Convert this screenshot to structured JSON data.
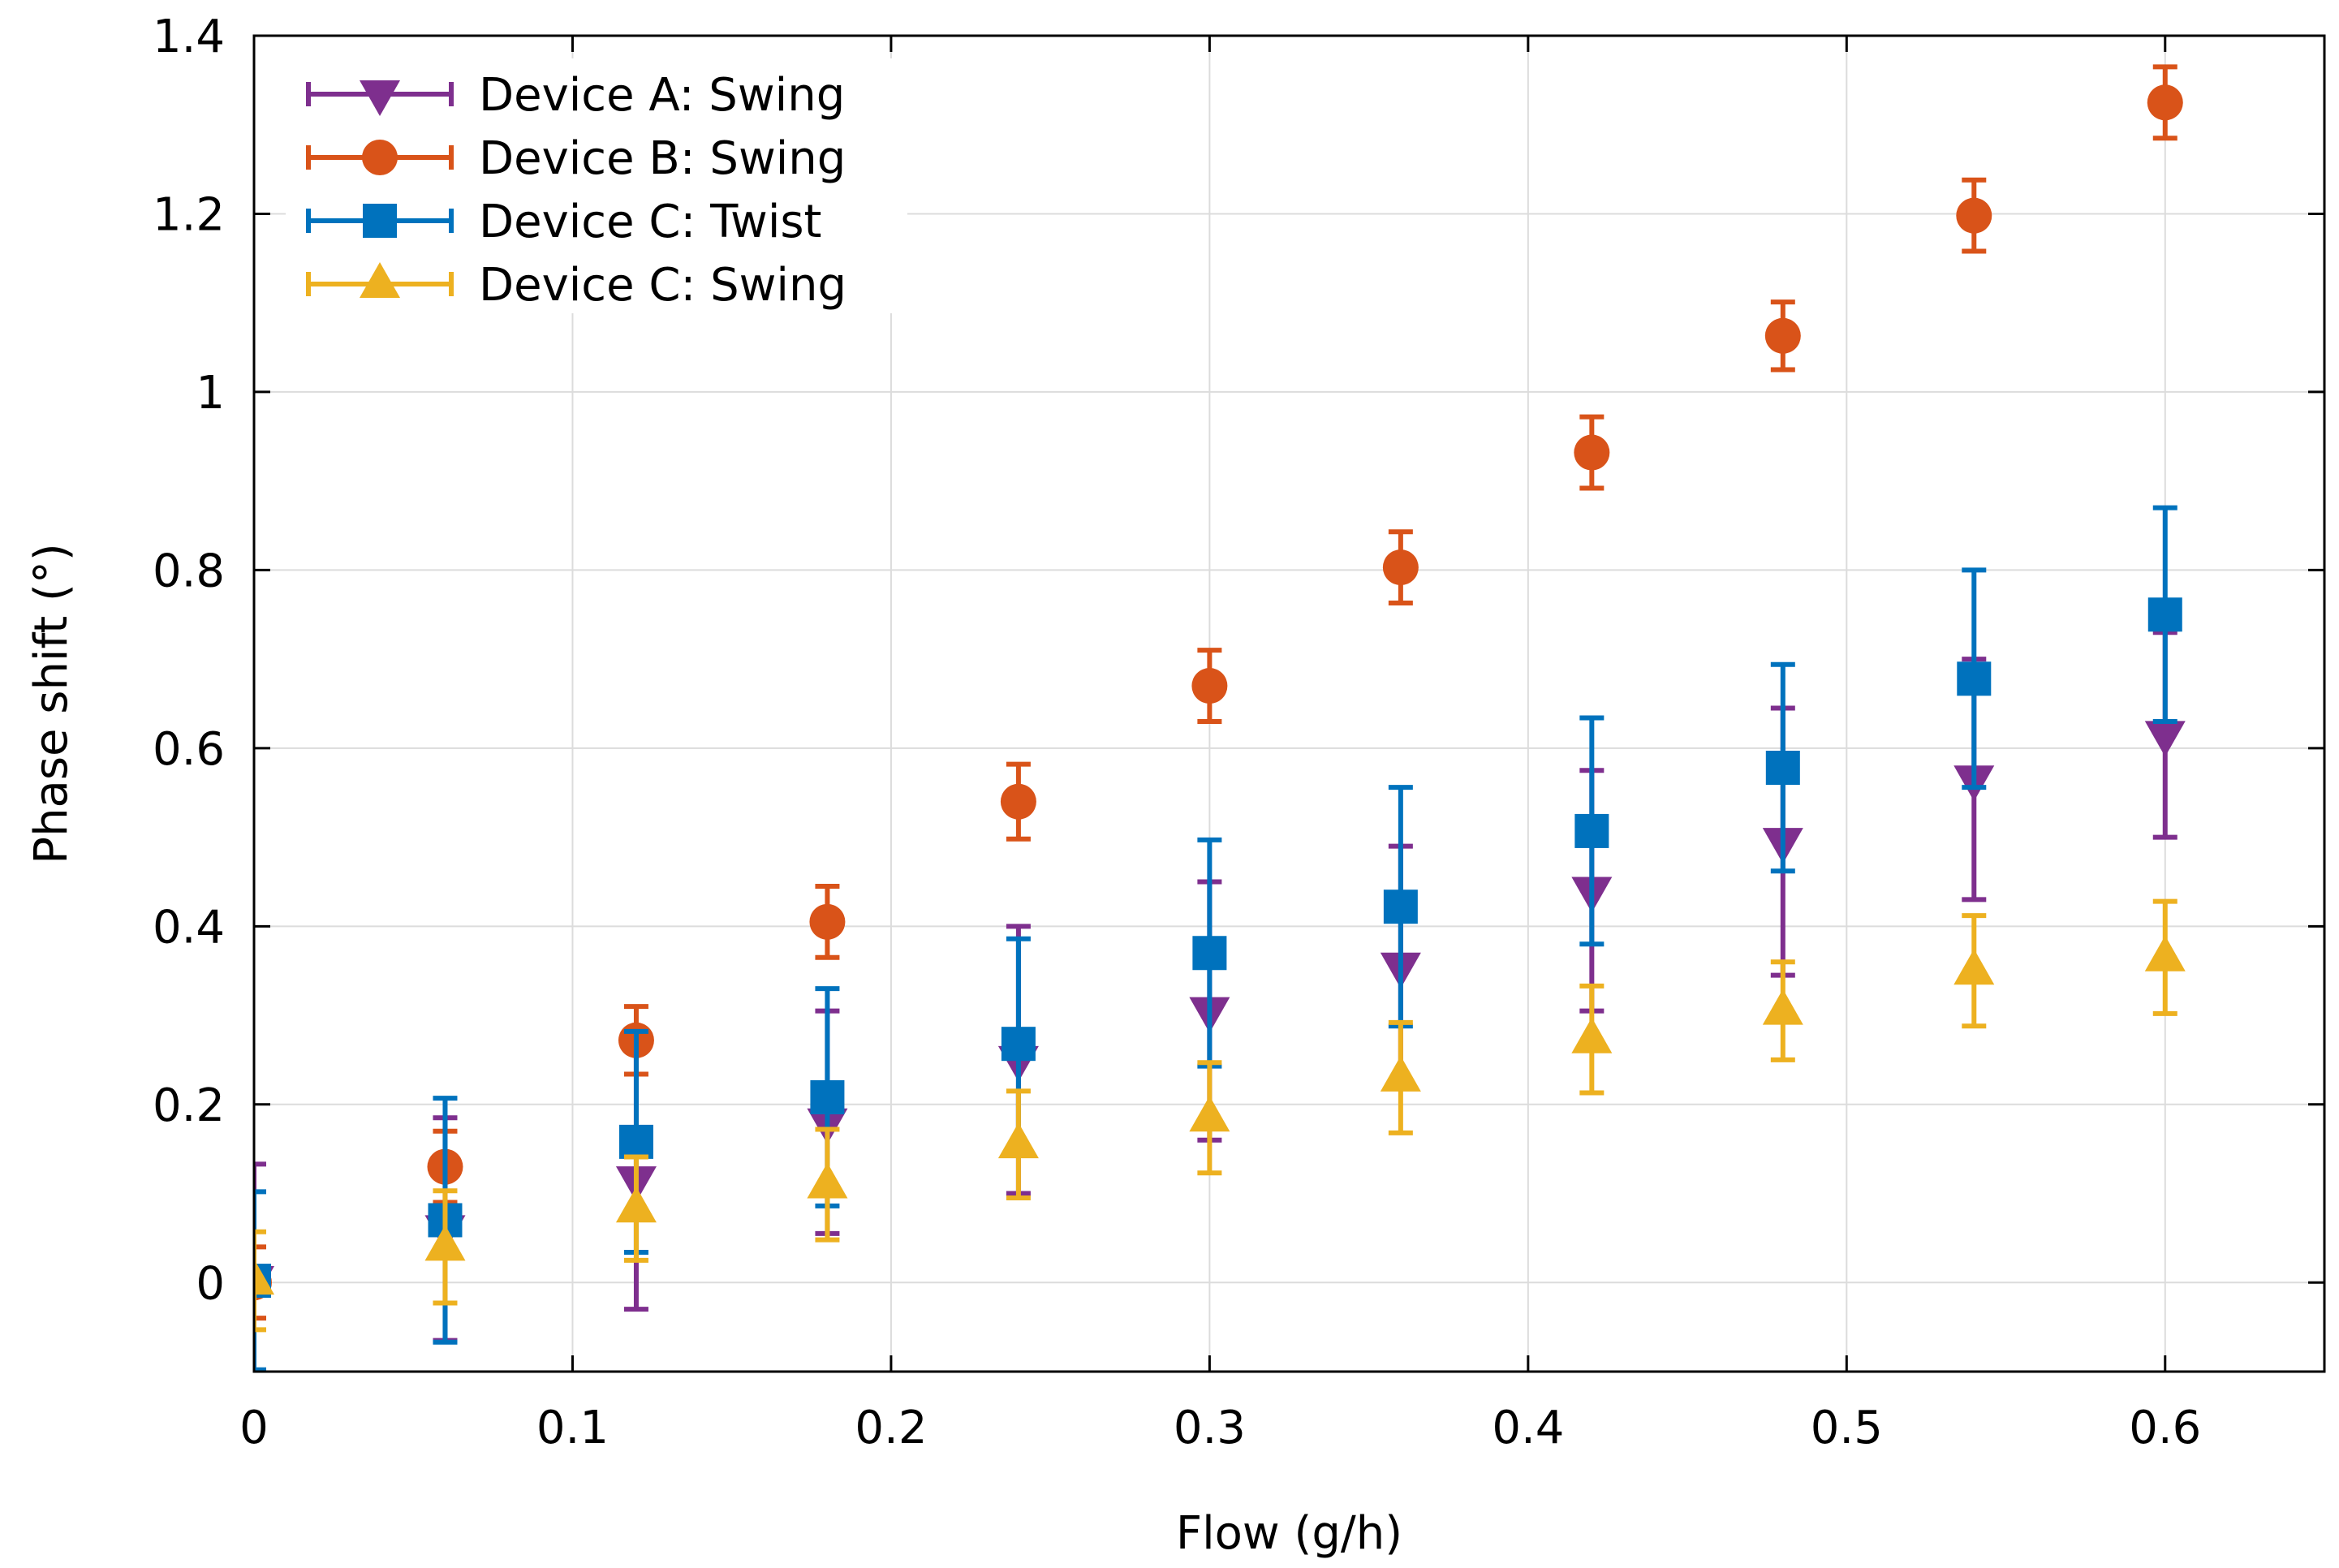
{
  "chart_data": {
    "type": "scatter",
    "title": "",
    "xlabel": "Flow (g/h)",
    "ylabel": "Phase shift (°)",
    "xlim": [
      0,
      0.65
    ],
    "ylim": [
      -0.1,
      1.4
    ],
    "grid": true,
    "legend_position": "top-left",
    "x_ticks": [
      0,
      0.1,
      0.2,
      0.3,
      0.4,
      0.5,
      0.6
    ],
    "x_tick_labels": [
      "0",
      "0.1",
      "0.2",
      "0.3",
      "0.4",
      "0.5",
      "0.6"
    ],
    "y_ticks": [
      0,
      0.2,
      0.4,
      0.6,
      0.8,
      1,
      1.2,
      1.4
    ],
    "y_tick_labels": [
      "0",
      "0.2",
      "0.4",
      "0.6",
      "0.8",
      "1",
      "1.2",
      "1.4"
    ],
    "x": [
      0,
      0.06,
      0.12,
      0.18,
      0.24,
      0.3,
      0.36,
      0.42,
      0.48,
      0.54,
      0.6
    ],
    "series": [
      {
        "name": "Device A: Swing",
        "marker": "triangle-down",
        "color": "#7E2F8E",
        "values": [
          0.003,
          0.06,
          0.115,
          0.18,
          0.25,
          0.305,
          0.355,
          0.44,
          0.495,
          0.565,
          0.615
        ],
        "errors": [
          0.13,
          0.125,
          0.145,
          0.125,
          0.15,
          0.145,
          0.135,
          0.135,
          0.15,
          0.135,
          0.115
        ]
      },
      {
        "name": "Device B: Swing",
        "marker": "circle",
        "color": "#D95319",
        "values": [
          0,
          0.13,
          0.272,
          0.405,
          0.54,
          0.67,
          0.803,
          0.932,
          1.063,
          1.198,
          1.325
        ],
        "errors": [
          0.04,
          0.04,
          0.038,
          0.04,
          0.042,
          0.04,
          0.04,
          0.04,
          0.038,
          0.04,
          0.04
        ]
      },
      {
        "name": "Device C: Twist",
        "marker": "square",
        "color": "#0072BD",
        "values": [
          0.002,
          0.07,
          0.158,
          0.208,
          0.268,
          0.37,
          0.422,
          0.507,
          0.578,
          0.678,
          0.75
        ],
        "errors": [
          0.1,
          0.137,
          0.124,
          0.122,
          0.118,
          0.127,
          0.134,
          0.127,
          0.116,
          0.122,
          0.12
        ]
      },
      {
        "name": "Device C: Swing",
        "marker": "triangle-up",
        "color": "#EDB120",
        "values": [
          0.002,
          0.04,
          0.083,
          0.11,
          0.155,
          0.185,
          0.23,
          0.273,
          0.305,
          0.35,
          0.365
        ],
        "errors": [
          0.055,
          0.063,
          0.058,
          0.062,
          0.06,
          0.062,
          0.062,
          0.06,
          0.055,
          0.062,
          0.063
        ]
      }
    ]
  }
}
